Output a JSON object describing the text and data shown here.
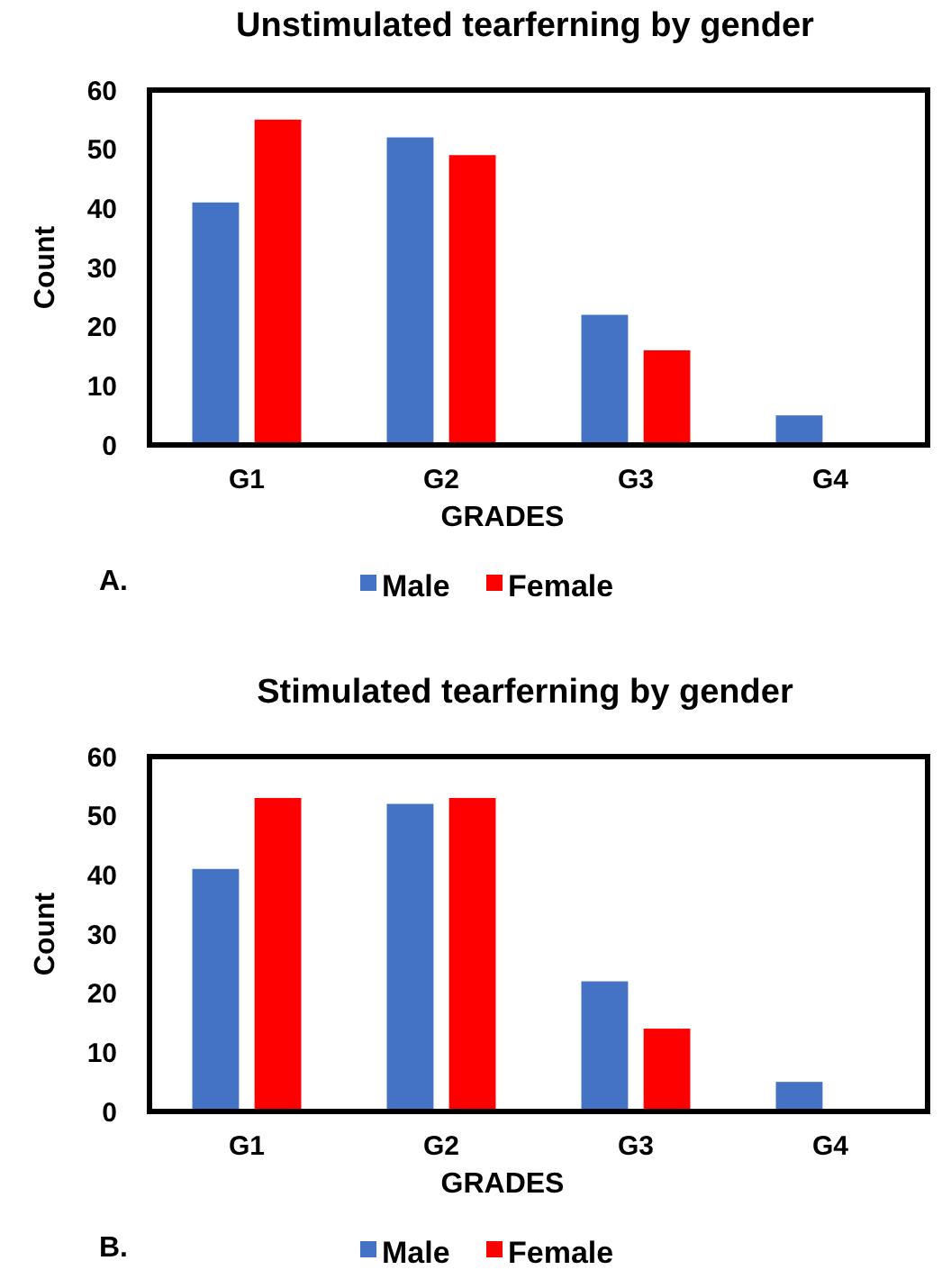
{
  "chart_data": [
    {
      "type": "bar",
      "title": "Unstimulated tearferning by gender",
      "xlabel": "GRADES",
      "ylabel": "Count",
      "categories": [
        "G1",
        "G2",
        "G3",
        "G4"
      ],
      "series": [
        {
          "name": "Male",
          "color": "#4472c4",
          "values": [
            41,
            52,
            22,
            5
          ]
        },
        {
          "name": "Female",
          "color": "#ff0000",
          "values": [
            55,
            49,
            16,
            0
          ]
        }
      ],
      "ylim": [
        0,
        60
      ],
      "yticks": [
        0,
        10,
        20,
        30,
        40,
        50,
        60
      ],
      "grid": false,
      "legend": "bottom",
      "annotations": [
        "A."
      ]
    },
    {
      "type": "bar",
      "title": "Stimulated tearferning by gender",
      "xlabel": "GRADES",
      "ylabel": "Count",
      "categories": [
        "G1",
        "G2",
        "G3",
        "G4"
      ],
      "series": [
        {
          "name": "Male",
          "color": "#4472c4",
          "values": [
            41,
            52,
            22,
            5
          ]
        },
        {
          "name": "Female",
          "color": "#ff0000",
          "values": [
            53,
            53,
            14,
            0
          ]
        }
      ],
      "ylim": [
        0,
        60
      ],
      "yticks": [
        0,
        10,
        20,
        30,
        40,
        50,
        60
      ],
      "grid": false,
      "legend": "bottom",
      "annotations": [
        "B."
      ]
    }
  ]
}
